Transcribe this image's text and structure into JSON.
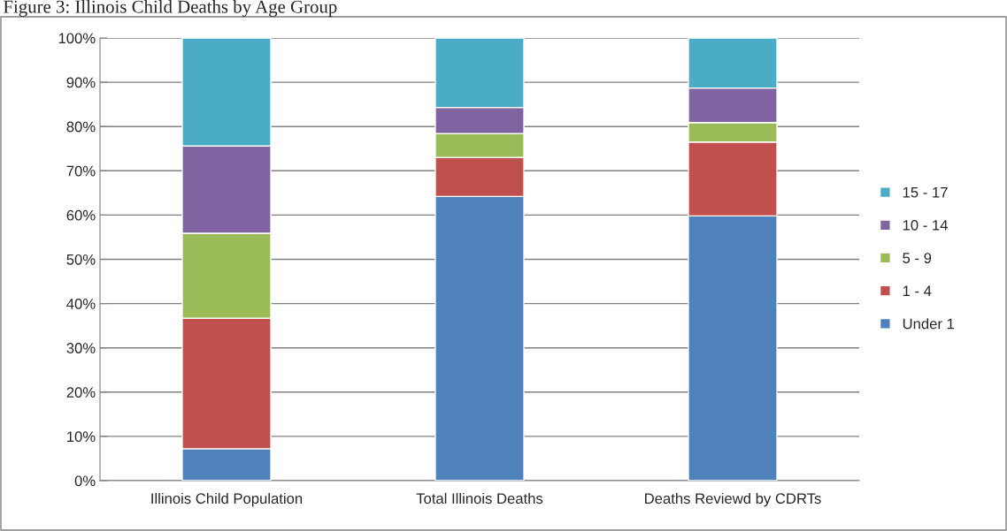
{
  "chart_data": {
    "type": "bar",
    "title": "Figure 3: Illinois Child Deaths by Age Group",
    "stacked": true,
    "categories": [
      "Illinois Child Population",
      "Total Illinois Deaths",
      "Deaths Reviewd by CDRTs"
    ],
    "series": [
      {
        "name": "Under 1",
        "color": "#4f81bd",
        "values": [
          7.2,
          64.2,
          59.8
        ]
      },
      {
        "name": "1 - 4",
        "color": "#c0504d",
        "values": [
          29.5,
          8.8,
          16.7
        ]
      },
      {
        "name": "5 - 9",
        "color": "#9bbb59",
        "values": [
          19.2,
          5.4,
          4.4
        ]
      },
      {
        "name": "10 - 14",
        "color": "#8064a2",
        "values": [
          19.7,
          5.9,
          7.8
        ]
      },
      {
        "name": "15 - 17",
        "color": "#4bacc6",
        "values": [
          24.4,
          15.7,
          11.3
        ]
      }
    ],
    "ylim": [
      0,
      100
    ],
    "yticks": [
      {
        "value": 0,
        "label": "0%"
      },
      {
        "value": 10,
        "label": "10%"
      },
      {
        "value": 20,
        "label": "20%"
      },
      {
        "value": 30,
        "label": "30%"
      },
      {
        "value": 40,
        "label": "40%"
      },
      {
        "value": 50,
        "label": "50%"
      },
      {
        "value": 60,
        "label": "60%"
      },
      {
        "value": 70,
        "label": "70%"
      },
      {
        "value": 80,
        "label": "80%"
      },
      {
        "value": 90,
        "label": "90%"
      },
      {
        "value": 100,
        "label": "100%"
      }
    ],
    "grid": "y",
    "legend": "right"
  }
}
